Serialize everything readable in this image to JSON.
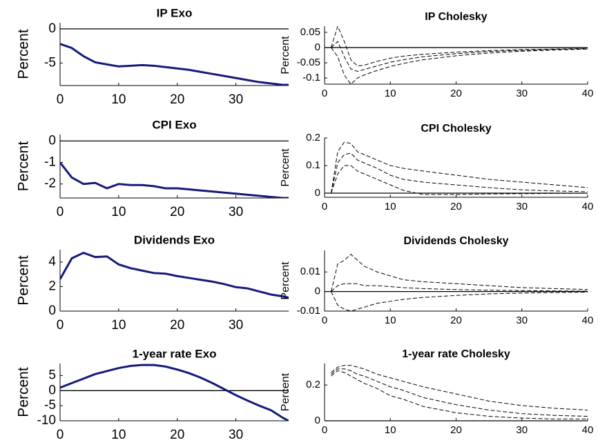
{
  "chart_data": [
    {
      "type": "line",
      "title": "IP Exo",
      "y_label": "Percent",
      "x": [
        0,
        2,
        4,
        6,
        8,
        10,
        12,
        14,
        16,
        18,
        20,
        22,
        24,
        26,
        28,
        30,
        32,
        34,
        36,
        38,
        39
      ],
      "series": [
        {
          "color": "#131a7a",
          "values": [
            -2.2,
            -2.8,
            -4.0,
            -4.9,
            -5.2,
            -5.5,
            -5.4,
            -5.3,
            -5.4,
            -5.6,
            -5.8,
            -6.0,
            -6.3,
            -6.6,
            -6.9,
            -7.2,
            -7.5,
            -7.8,
            -8.0,
            -8.2,
            -8.2
          ]
        }
      ],
      "xlim": [
        0,
        39
      ],
      "xticks": [
        0,
        10,
        20,
        30
      ],
      "ylim": [
        -8.3,
        0.9
      ],
      "yticks": [
        -5,
        0
      ],
      "zero_line": true
    },
    {
      "type": "line",
      "title": "IP Cholesky",
      "y_label": "Percent",
      "x": [
        1,
        2,
        3,
        4,
        5,
        6,
        8,
        10,
        12,
        15,
        20,
        25,
        30,
        35,
        40
      ],
      "series": [
        {
          "color": "#000000",
          "values": [
            0,
            0.07,
            0.02,
            -0.04,
            -0.06,
            -0.058,
            -0.045,
            -0.035,
            -0.028,
            -0.022,
            -0.015,
            -0.01,
            -0.007,
            -0.005,
            -0.003
          ]
        },
        {
          "color": "#000000",
          "values": [
            0,
            0.02,
            -0.03,
            -0.07,
            -0.078,
            -0.072,
            -0.06,
            -0.048,
            -0.04,
            -0.03,
            -0.02,
            -0.013,
            -0.009,
            -0.006,
            -0.004
          ]
        },
        {
          "color": "#000000",
          "values": [
            0,
            -0.03,
            -0.09,
            -0.12,
            -0.1,
            -0.09,
            -0.075,
            -0.062,
            -0.052,
            -0.04,
            -0.027,
            -0.018,
            -0.012,
            -0.008,
            -0.005
          ]
        }
      ],
      "xlim": [
        0,
        40
      ],
      "xticks": [
        0,
        10,
        20,
        30,
        40
      ],
      "ylim": [
        -0.12,
        0.07
      ],
      "yticks": [
        -0.1,
        -0.05,
        0,
        0.05
      ],
      "zero_line": true
    },
    {
      "type": "line",
      "title": "CPI Exo",
      "y_label": "Percent",
      "x": [
        0,
        2,
        4,
        6,
        8,
        10,
        12,
        14,
        16,
        18,
        20,
        22,
        24,
        26,
        28,
        30,
        32,
        34,
        36,
        38,
        39
      ],
      "series": [
        {
          "color": "#131a7a",
          "values": [
            -1.0,
            -1.7,
            -2.0,
            -1.95,
            -2.2,
            -2.0,
            -2.05,
            -2.05,
            -2.1,
            -2.2,
            -2.2,
            -2.25,
            -2.3,
            -2.35,
            -2.4,
            -2.45,
            -2.5,
            -2.55,
            -2.6,
            -2.65,
            -2.65
          ]
        }
      ],
      "xlim": [
        0,
        39
      ],
      "xticks": [
        0,
        10,
        20,
        30
      ],
      "ylim": [
        -2.65,
        0.3
      ],
      "yticks": [
        -2,
        -1,
        0
      ],
      "zero_line": true
    },
    {
      "type": "line",
      "title": "CPI Cholesky",
      "y_label": "Percent",
      "x": [
        1,
        2,
        3,
        4,
        5,
        6,
        8,
        10,
        12,
        15,
        20,
        25,
        30,
        35,
        40
      ],
      "series": [
        {
          "color": "#000000",
          "values": [
            0,
            0.15,
            0.185,
            0.18,
            0.15,
            0.14,
            0.12,
            0.1,
            0.09,
            0.08,
            0.065,
            0.05,
            0.04,
            0.03,
            0.02
          ]
        },
        {
          "color": "#000000",
          "values": [
            0,
            0.11,
            0.14,
            0.145,
            0.12,
            0.11,
            0.09,
            0.065,
            0.05,
            0.04,
            0.03,
            0.02,
            0.012,
            0.008,
            0.005
          ]
        },
        {
          "color": "#000000",
          "values": [
            0,
            0.07,
            0.1,
            0.1,
            0.08,
            0.07,
            0.05,
            0.03,
            0.01,
            -0.005,
            -0.005,
            -0.003,
            -0.002,
            -0.001,
            0
          ]
        }
      ],
      "xlim": [
        0,
        40
      ],
      "xticks": [
        0,
        10,
        20,
        30,
        40
      ],
      "ylim": [
        -0.015,
        0.2
      ],
      "yticks": [
        0,
        0.1,
        0.2
      ],
      "zero_line": true
    },
    {
      "type": "line",
      "title": "Dividends Exo",
      "y_label": "Percent",
      "x": [
        0,
        2,
        4,
        6,
        8,
        10,
        12,
        14,
        16,
        18,
        20,
        22,
        24,
        26,
        28,
        30,
        32,
        34,
        36,
        38,
        39
      ],
      "series": [
        {
          "color": "#131a7a",
          "values": [
            2.6,
            4.3,
            4.75,
            4.4,
            4.45,
            3.8,
            3.5,
            3.3,
            3.1,
            3.05,
            2.85,
            2.7,
            2.55,
            2.4,
            2.2,
            1.95,
            1.85,
            1.6,
            1.35,
            1.2,
            1.1
          ]
        }
      ],
      "xlim": [
        0,
        39
      ],
      "xticks": [
        0,
        10,
        20,
        30
      ],
      "ylim": [
        0,
        5
      ],
      "yticks": [
        0,
        2,
        4
      ],
      "zero_line": false
    },
    {
      "type": "line",
      "title": "Dividends Cholesky",
      "y_label": "Percent",
      "x": [
        1,
        2,
        3,
        4,
        5,
        6,
        8,
        10,
        12,
        15,
        20,
        25,
        30,
        35,
        40
      ],
      "series": [
        {
          "color": "#000000",
          "values": [
            0,
            0.014,
            0.016,
            0.019,
            0.016,
            0.013,
            0.01,
            0.008,
            0.006,
            0.005,
            0.004,
            0.003,
            0.002,
            0.0015,
            0.001
          ]
        },
        {
          "color": "#000000",
          "values": [
            0,
            0.003,
            0.004,
            0.004,
            0.004,
            0.003,
            0.003,
            0.0025,
            0.002,
            0.0015,
            0.001,
            0.0007,
            0.0005,
            0.0003,
            0.0002
          ]
        },
        {
          "color": "#000000",
          "values": [
            0,
            -0.007,
            -0.009,
            -0.01,
            -0.009,
            -0.008,
            -0.006,
            -0.005,
            -0.004,
            -0.003,
            -0.002,
            -0.0012,
            -0.0008,
            -0.0005,
            -0.0003
          ]
        }
      ],
      "xlim": [
        0,
        40
      ],
      "xticks": [
        0,
        10,
        20,
        30,
        40
      ],
      "ylim": [
        -0.01,
        0.021
      ],
      "yticks": [
        -0.01,
        0,
        0.01
      ],
      "zero_line": true
    },
    {
      "type": "line",
      "title": "1-year rate Exo",
      "y_label": "Percent",
      "x": [
        0,
        2,
        4,
        6,
        8,
        10,
        12,
        14,
        16,
        18,
        20,
        22,
        24,
        26,
        28,
        30,
        32,
        34,
        36,
        38,
        39
      ],
      "series": [
        {
          "color": "#131a7a",
          "values": [
            1,
            2.5,
            4,
            5.5,
            6.5,
            7.5,
            8.2,
            8.5,
            8.5,
            8,
            7,
            5.8,
            4.3,
            2.5,
            0.5,
            -1.5,
            -3.3,
            -5,
            -6.5,
            -9,
            -10
          ]
        }
      ],
      "xlim": [
        0,
        39
      ],
      "xticks": [
        0,
        10,
        20,
        30
      ],
      "ylim": [
        -10,
        9
      ],
      "yticks": [
        -10,
        -5,
        0,
        5
      ],
      "zero_line": true
    },
    {
      "type": "line",
      "title": "1-year rate Cholesky",
      "y_label": "Percent",
      "x": [
        1,
        2,
        3,
        4,
        5,
        6,
        8,
        10,
        12,
        15,
        20,
        25,
        30,
        35,
        40
      ],
      "series": [
        {
          "color": "#000000",
          "values": [
            0.27,
            0.3,
            0.31,
            0.31,
            0.3,
            0.29,
            0.26,
            0.24,
            0.22,
            0.19,
            0.15,
            0.11,
            0.085,
            0.07,
            0.06
          ]
        },
        {
          "color": "#000000",
          "values": [
            0.26,
            0.29,
            0.29,
            0.28,
            0.26,
            0.25,
            0.22,
            0.19,
            0.17,
            0.13,
            0.09,
            0.06,
            0.04,
            0.03,
            0.025
          ]
        },
        {
          "color": "#000000",
          "values": [
            0.25,
            0.28,
            0.27,
            0.25,
            0.23,
            0.21,
            0.18,
            0.14,
            0.12,
            0.08,
            0.045,
            0.025,
            0.015,
            0.01,
            0.01
          ]
        }
      ],
      "xlim": [
        0,
        40
      ],
      "xticks": [
        0,
        10,
        20,
        30,
        40
      ],
      "ylim": [
        0,
        0.32
      ],
      "yticks": [
        0,
        0.2
      ],
      "zero_line": true
    }
  ]
}
